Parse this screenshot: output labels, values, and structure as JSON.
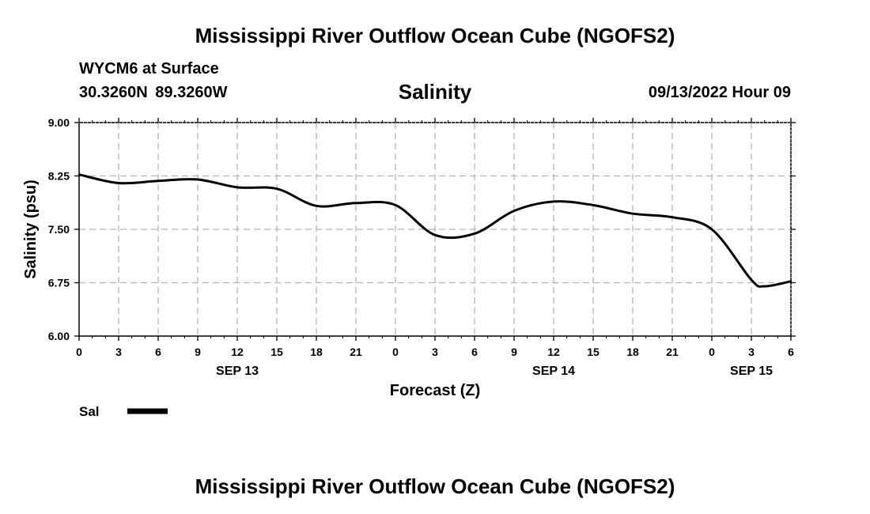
{
  "header": {
    "title": "Mississippi River Outflow Ocean Cube (NGOFS2)",
    "station": "WYCM6 at Surface",
    "coordinates": "30.3260N  89.3260W",
    "parameter": "Salinity",
    "datetime": "09/13/2022 Hour 09"
  },
  "footer": {
    "title": "Mississippi River Outflow Ocean Cube (NGOFS2)"
  },
  "chart_data": {
    "type": "line",
    "title": "Salinity",
    "xlabel": "Forecast (Z)",
    "ylabel": "Salinity (psu)",
    "ylim": [
      6.0,
      9.0
    ],
    "xlim": [
      0,
      54
    ],
    "yticks": [
      "6.00",
      "6.75",
      "7.50",
      "8.25",
      "9.00"
    ],
    "xticks": [
      "0",
      "3",
      "6",
      "9",
      "12",
      "15",
      "18",
      "21",
      "0",
      "3",
      "6",
      "9",
      "12",
      "15",
      "18",
      "21",
      "0",
      "3",
      "6"
    ],
    "date_labels": [
      {
        "label": "SEP 13",
        "hour": 12
      },
      {
        "label": "SEP 14",
        "hour": 36
      },
      {
        "label": "SEP 15",
        "hour": 51
      }
    ],
    "grid": true,
    "legend": {
      "position": "bottom-left",
      "entries": [
        {
          "name": "Sal",
          "color": "#000000"
        }
      ]
    },
    "series": [
      {
        "name": "Sal",
        "color": "#000000",
        "x": [
          0,
          3,
          6,
          9,
          12,
          15,
          18,
          21,
          24,
          27,
          30,
          33,
          36,
          39,
          42,
          45,
          48,
          51,
          52,
          54
        ],
        "values": [
          8.27,
          8.15,
          8.18,
          8.2,
          8.09,
          8.07,
          7.83,
          7.87,
          7.84,
          7.42,
          7.44,
          7.76,
          7.89,
          7.84,
          7.72,
          7.67,
          7.5,
          6.79,
          6.7,
          6.77
        ]
      }
    ]
  }
}
